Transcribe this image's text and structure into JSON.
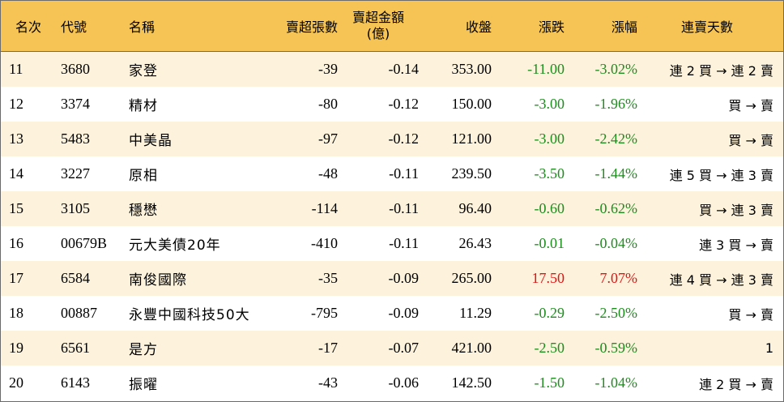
{
  "headers": {
    "rank": "名次",
    "code": "代號",
    "name": "名稱",
    "net_sell_lots": "賣超張數",
    "net_sell_amount_line1": "賣超金額",
    "net_sell_amount_line2": "(億)",
    "close": "收盤",
    "change": "漲跌",
    "change_pct": "漲幅",
    "streak": "連賣天數"
  },
  "colors": {
    "header_bg": "#f6c454",
    "stripe_bg": "#fdf2dc",
    "down_green": "#1e8c1e",
    "up_red": "#e01414"
  },
  "rows": [
    {
      "rank": "11",
      "code": "3680",
      "name": "家登",
      "net_sell_lots": "-39",
      "net_sell_amount": "-0.14",
      "close": "353.00",
      "change": "-11.00",
      "change_pct": "-3.02%",
      "streak": "連 2 買 → 連 2 賣",
      "direction": "down"
    },
    {
      "rank": "12",
      "code": "3374",
      "name": "精材",
      "net_sell_lots": "-80",
      "net_sell_amount": "-0.12",
      "close": "150.00",
      "change": "-3.00",
      "change_pct": "-1.96%",
      "streak": "買 → 賣",
      "direction": "down"
    },
    {
      "rank": "13",
      "code": "5483",
      "name": "中美晶",
      "net_sell_lots": "-97",
      "net_sell_amount": "-0.12",
      "close": "121.00",
      "change": "-3.00",
      "change_pct": "-2.42%",
      "streak": "買 → 賣",
      "direction": "down"
    },
    {
      "rank": "14",
      "code": "3227",
      "name": "原相",
      "net_sell_lots": "-48",
      "net_sell_amount": "-0.11",
      "close": "239.50",
      "change": "-3.50",
      "change_pct": "-1.44%",
      "streak": "連 5 買 → 連 3 賣",
      "direction": "down"
    },
    {
      "rank": "15",
      "code": "3105",
      "name": "穩懋",
      "net_sell_lots": "-114",
      "net_sell_amount": "-0.11",
      "close": "96.40",
      "change": "-0.60",
      "change_pct": "-0.62%",
      "streak": "買 → 連 3 賣",
      "direction": "down"
    },
    {
      "rank": "16",
      "code": "00679B",
      "name": "元大美債20年",
      "net_sell_lots": "-410",
      "net_sell_amount": "-0.11",
      "close": "26.43",
      "change": "-0.01",
      "change_pct": "-0.04%",
      "streak": "連 3 買 → 賣",
      "direction": "down"
    },
    {
      "rank": "17",
      "code": "6584",
      "name": "南俊國際",
      "net_sell_lots": "-35",
      "net_sell_amount": "-0.09",
      "close": "265.00",
      "change": "17.50",
      "change_pct": "7.07%",
      "streak": "連 4 買 → 連 3 賣",
      "direction": "up"
    },
    {
      "rank": "18",
      "code": "00887",
      "name": "永豐中國科技50大",
      "net_sell_lots": "-795",
      "net_sell_amount": "-0.09",
      "close": "11.29",
      "change": "-0.29",
      "change_pct": "-2.50%",
      "streak": "買 → 賣",
      "direction": "down"
    },
    {
      "rank": "19",
      "code": "6561",
      "name": "是方",
      "net_sell_lots": "-17",
      "net_sell_amount": "-0.07",
      "close": "421.00",
      "change": "-2.50",
      "change_pct": "-0.59%",
      "streak": "1",
      "direction": "down"
    },
    {
      "rank": "20",
      "code": "6143",
      "name": "振曜",
      "net_sell_lots": "-43",
      "net_sell_amount": "-0.06",
      "close": "142.50",
      "change": "-1.50",
      "change_pct": "-1.04%",
      "streak": "連 2 買 → 賣",
      "direction": "down"
    }
  ]
}
